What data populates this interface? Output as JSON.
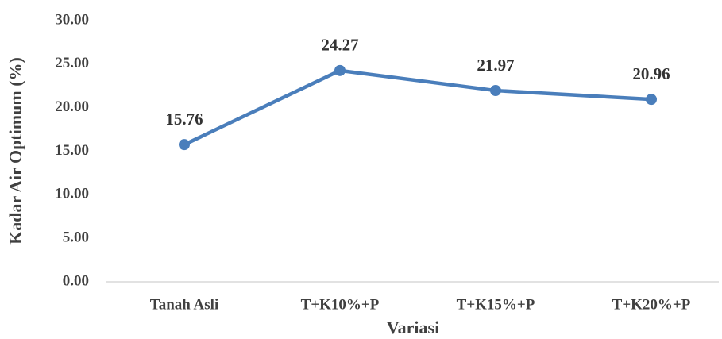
{
  "chart_data": {
    "type": "line",
    "x_label": "Variasi",
    "y_label": "Kadar Air Optimum (%)",
    "categories": [
      "Tanah Asli",
      "T+K10%+P",
      "T+K15%+P",
      "T+K20%+P"
    ],
    "series": [
      {
        "name": "Kadar Air Optimum",
        "color": "#4a7ebb",
        "values": [
          15.76,
          24.27,
          21.97,
          20.96
        ]
      }
    ],
    "ylim": [
      0,
      30
    ],
    "yticks": [
      {
        "value": 0,
        "label": "0.00"
      },
      {
        "value": 5,
        "label": "5.00"
      },
      {
        "value": 10,
        "label": "10.00"
      },
      {
        "value": 15,
        "label": "15.00"
      },
      {
        "value": 20,
        "label": "20.00"
      },
      {
        "value": 25,
        "label": "25.00"
      },
      {
        "value": 30,
        "label": "30.00"
      }
    ],
    "grid": false
  }
}
